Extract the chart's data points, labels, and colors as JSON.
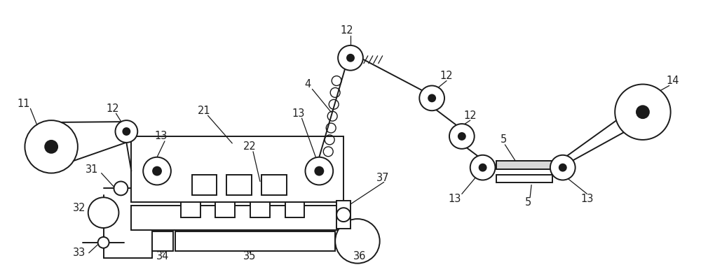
{
  "bg_color": "#ffffff",
  "line_color": "#1a1a1a",
  "fig_width": 10.0,
  "fig_height": 3.79,
  "dpi": 100
}
